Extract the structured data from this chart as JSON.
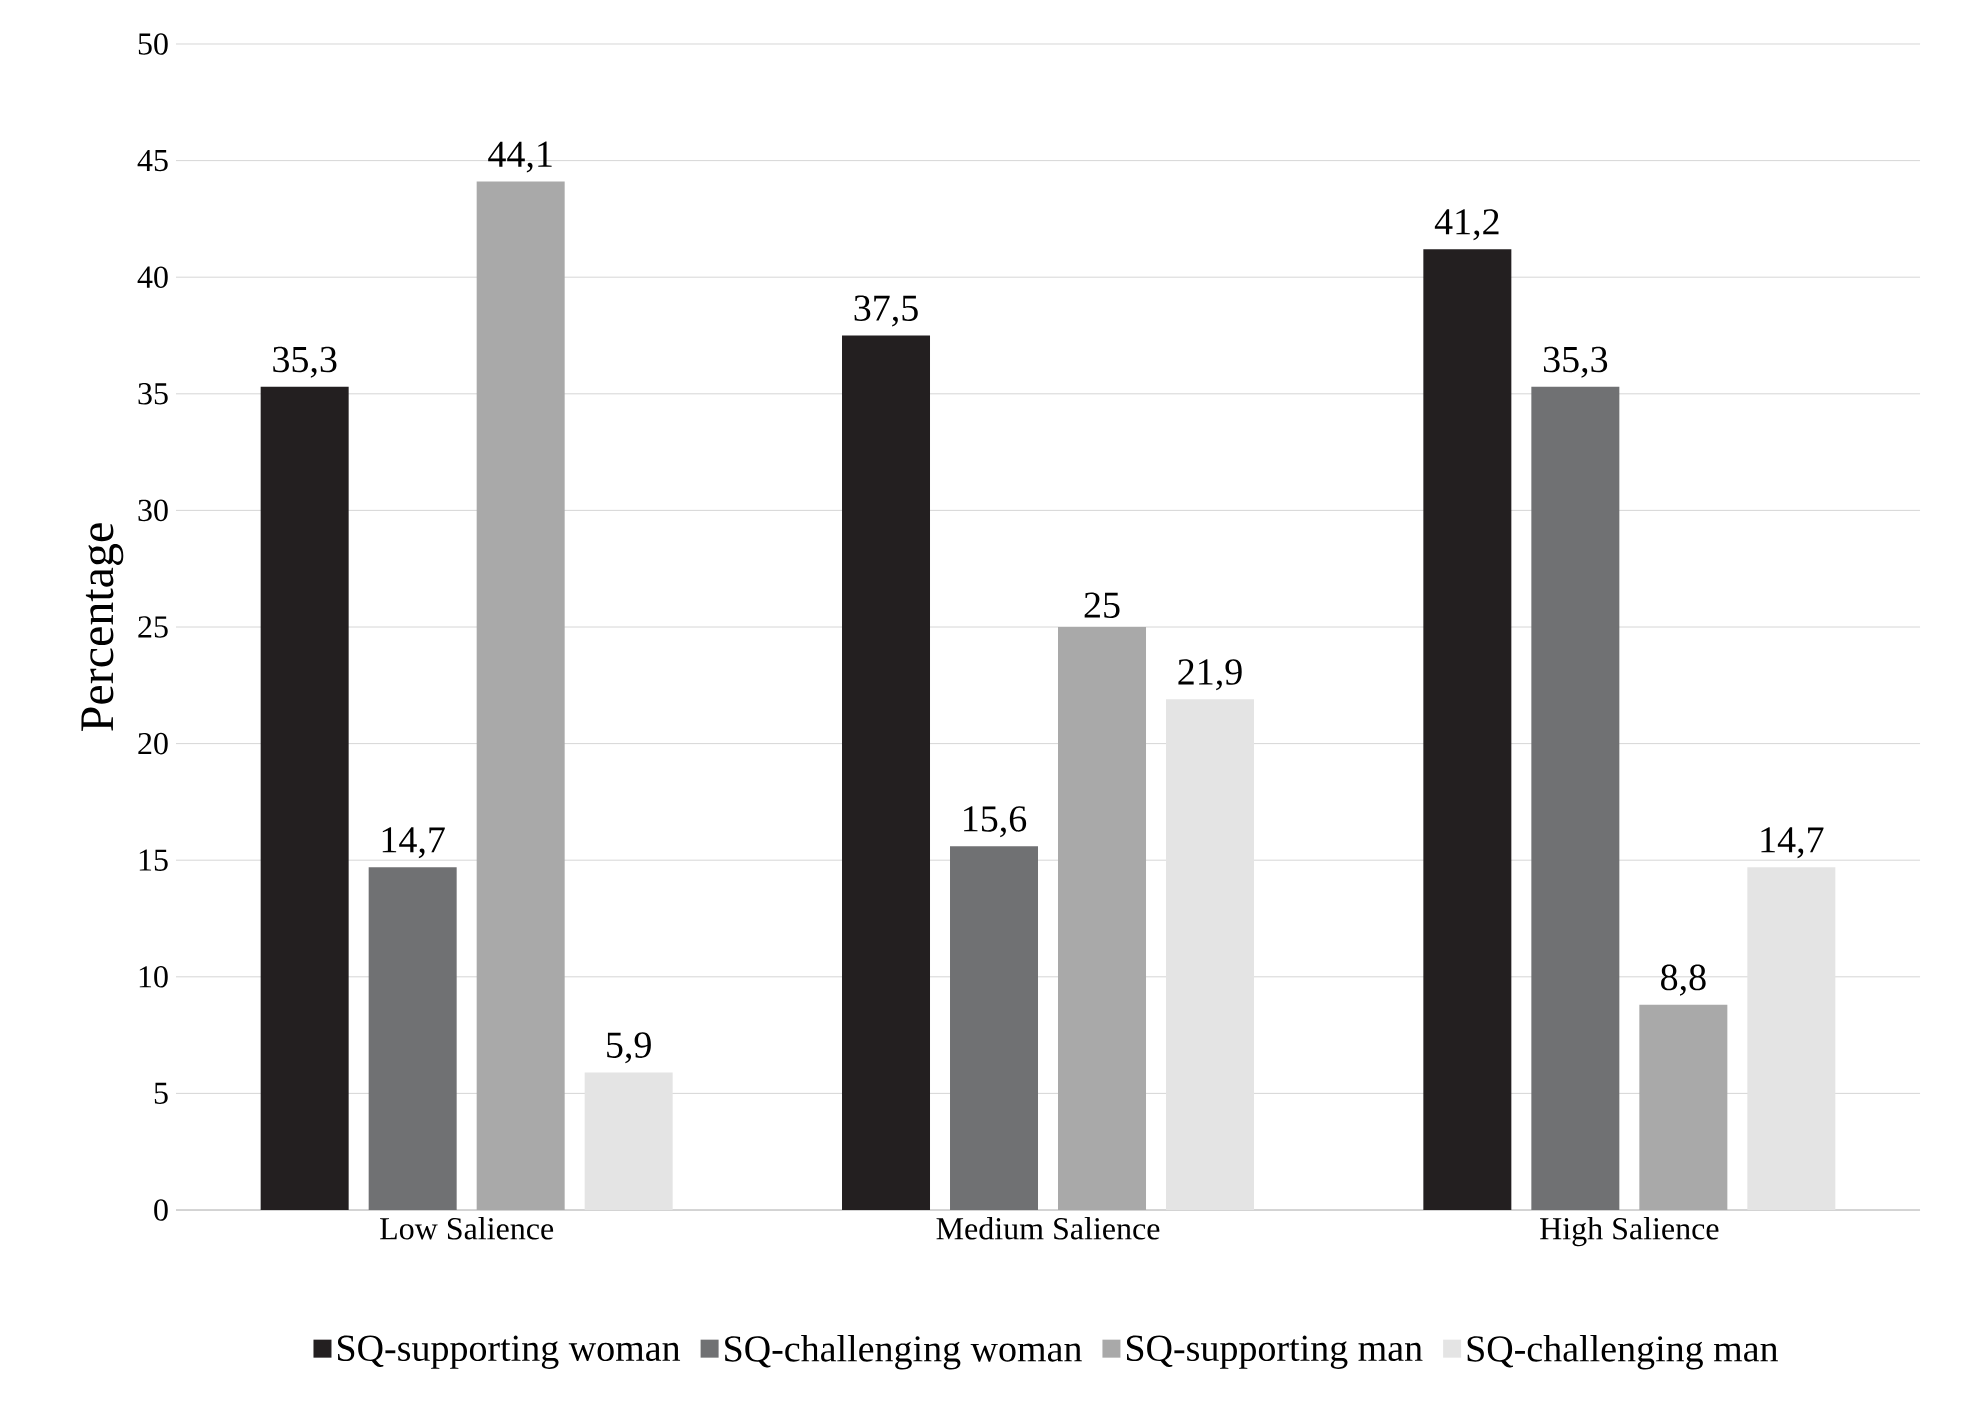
{
  "chart_data": {
    "type": "bar",
    "ylabel": "Percentage",
    "categories": [
      "Low Salience",
      "Medium Salience",
      "High Salience"
    ],
    "series": [
      {
        "name": "SQ-supporting woman",
        "color": "#231f20",
        "values": [
          35.3,
          37.5,
          41.2
        ],
        "value_labels": [
          "35,3",
          "37,5",
          "41,2"
        ]
      },
      {
        "name": "SQ-challenging woman",
        "color": "#707173",
        "values": [
          14.7,
          15.6,
          35.3
        ],
        "value_labels": [
          "14,7",
          "15,6",
          "35,3"
        ]
      },
      {
        "name": "SQ-supporting man",
        "color": "#a9a9a9",
        "values": [
          44.1,
          25,
          8.8
        ],
        "value_labels": [
          "44,1",
          "25",
          "8,8"
        ]
      },
      {
        "name": "SQ-challenging man",
        "color": "#e4e4e4",
        "values": [
          5.9,
          21.9,
          14.7
        ],
        "value_labels": [
          "5,9",
          "21,9",
          "14,7"
        ]
      }
    ],
    "ylim": [
      0,
      50
    ],
    "yticks": [
      0,
      5,
      10,
      15,
      20,
      25,
      30,
      35,
      40,
      45,
      50
    ],
    "grid": "y",
    "legend": "bottom"
  }
}
